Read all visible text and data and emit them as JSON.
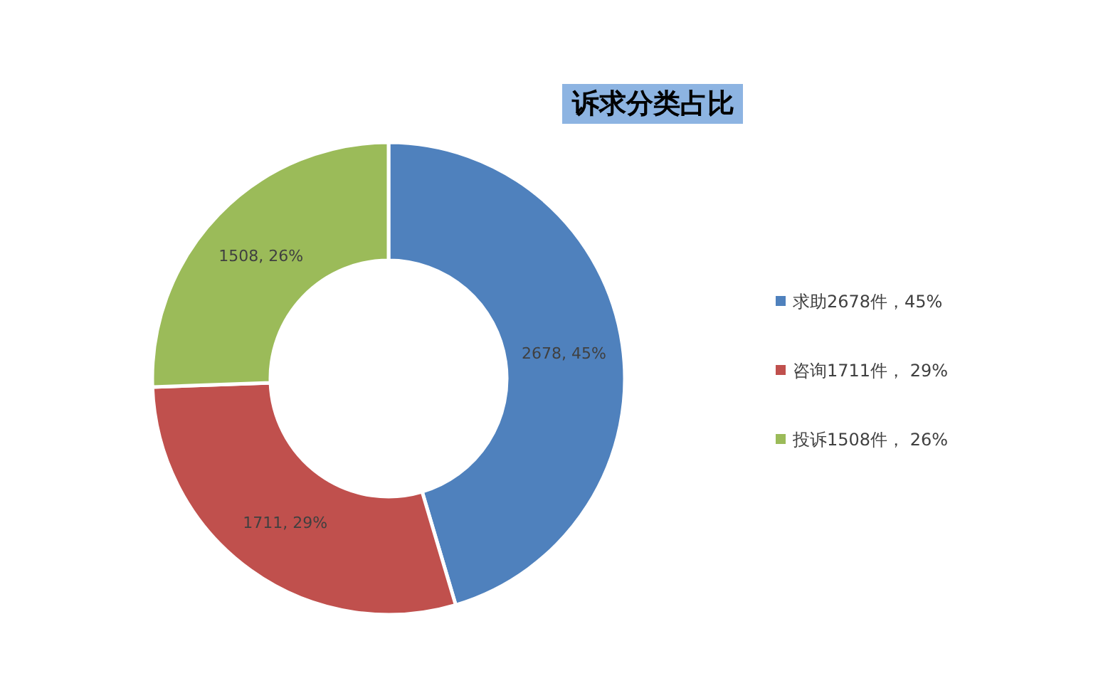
{
  "chart_data": {
    "type": "donut",
    "title": "诉求分类占比",
    "categories": [
      "求助2678件，45%",
      "咨询1711件， 29%",
      "投诉1508件， 26%"
    ],
    "values": [
      2678,
      1711,
      1508
    ],
    "value_labels": [
      "2678, 45%",
      "1711, 29%",
      "1508, 26%"
    ],
    "colors": [
      "#4f81bd",
      "#c0504d",
      "#9bbb59"
    ],
    "legend": "right"
  }
}
